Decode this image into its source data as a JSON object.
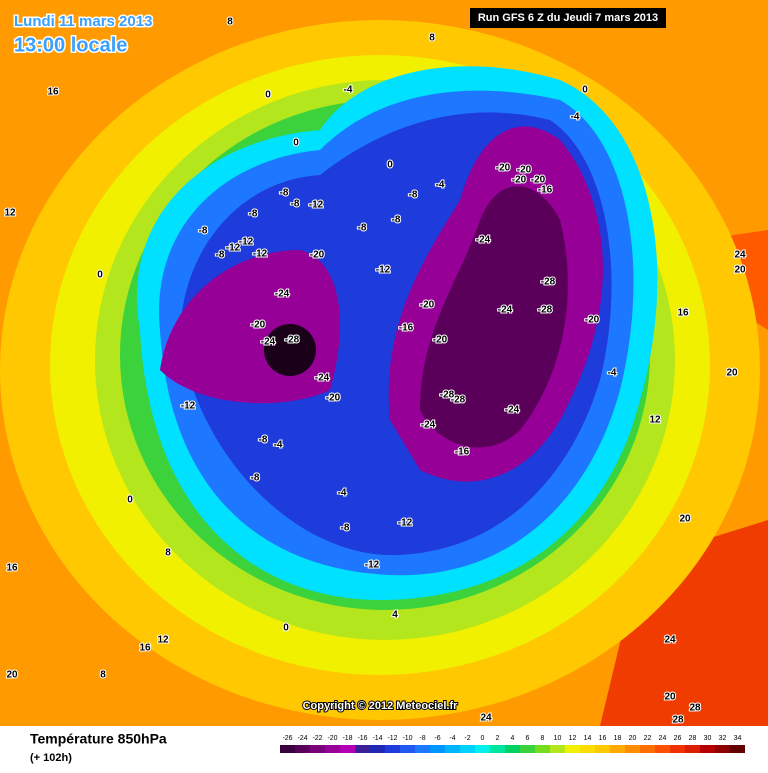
{
  "header": {
    "date": "Lundi 11 mars 2013",
    "time": "13:00 locale",
    "run": "Run GFS 6 Z du Jeudi 7 mars 2013"
  },
  "copyright": "Copyright © 2012 Meteociel.fr",
  "footer": {
    "title": "Température 850hPa",
    "lead": "(+ 102h)"
  },
  "contour_labels": [
    -28,
    -24,
    -24,
    -20,
    -24,
    -20,
    -20,
    -12,
    -12,
    -12,
    -8,
    -8,
    -8,
    -8,
    -12,
    -8,
    -12,
    -12,
    -16,
    -20,
    -20,
    -28,
    -28,
    -24,
    -24,
    -16,
    -24,
    -28,
    -28,
    -24,
    -20,
    -20,
    -20,
    -20,
    -16,
    -20,
    -4,
    -4,
    -8,
    -8,
    -8,
    -4,
    0,
    0,
    0,
    0,
    -4,
    8,
    8,
    16,
    12,
    0,
    0,
    8,
    -8,
    -4,
    -8,
    -4,
    -8,
    -12,
    -12,
    0,
    4,
    12,
    16,
    8,
    20,
    16,
    12,
    16,
    24,
    20,
    20,
    20,
    24,
    20,
    28,
    28,
    24
  ],
  "scale": {
    "labels": [
      -26,
      -24,
      -22,
      -20,
      -18,
      -16,
      -14,
      -12,
      -10,
      -8,
      -6,
      -4,
      -2,
      0,
      2,
      4,
      6,
      8,
      10,
      12,
      14,
      16,
      18,
      20,
      22,
      24,
      26,
      28,
      30,
      32,
      34
    ],
    "colors": [
      "#3c003c",
      "#5a005a",
      "#780078",
      "#960096",
      "#b400b4",
      "#3c1e96",
      "#1e28b4",
      "#1e3cdc",
      "#1e5af0",
      "#1e78ff",
      "#0096ff",
      "#00b4ff",
      "#00d2ff",
      "#00f0f0",
      "#00e6a0",
      "#00d264",
      "#3cd23c",
      "#78dc1e",
      "#b4e61e",
      "#f0f000",
      "#ffdc00",
      "#ffc800",
      "#ffaa00",
      "#ff8c00",
      "#ff6e00",
      "#ff5000",
      "#f03200",
      "#dc1e00",
      "#b40000",
      "#8c0000",
      "#640000"
    ]
  }
}
